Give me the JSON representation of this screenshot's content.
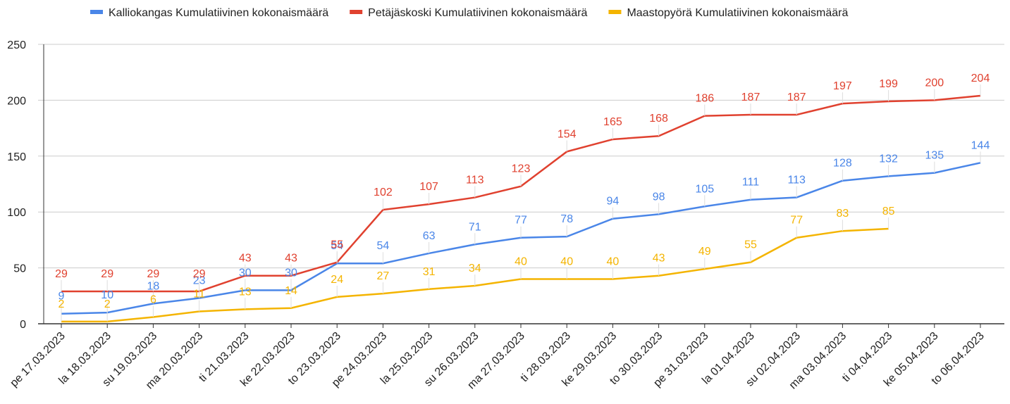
{
  "chart_data": {
    "type": "line",
    "categories": [
      "pe 17.03.2023",
      "la 18.03.2023",
      "su 19.03.2023",
      "ma 20.03.2023",
      "ti 21.03.2023",
      "ke 22.03.2023",
      "to 23.03.2023",
      "pe 24.03.2023",
      "la 25.03.2023",
      "su 26.03.2023",
      "ma 27.03.2023",
      "ti 28.03.2023",
      "ke 29.03.2023",
      "to 30.03.2023",
      "pe 31.03.2023",
      "la 01.04.2023",
      "su 02.04.2023",
      "ma 03.04.2023",
      "ti 04.04.2023",
      "ke 05.04.2023",
      "to 06.04.2023"
    ],
    "series": [
      {
        "name": "Kalliokangas Kumulatiivinen kokonaismäärä",
        "color": "#4a86e8",
        "values": [
          9,
          10,
          18,
          23,
          30,
          30,
          54,
          54,
          63,
          71,
          77,
          78,
          94,
          98,
          105,
          111,
          113,
          128,
          132,
          135,
          144
        ]
      },
      {
        "name": "Petäjäskoski Kumulatiivinen kokonaismäärä",
        "color": "#e0412f",
        "values": [
          29,
          29,
          29,
          29,
          43,
          43,
          55,
          102,
          107,
          113,
          123,
          154,
          165,
          168,
          186,
          187,
          187,
          197,
          199,
          200,
          204
        ]
      },
      {
        "name": "Maastopyörä Kumulatiivinen kokonaismäärä",
        "color": "#f4b400",
        "values": [
          2,
          2,
          6,
          11,
          13,
          14,
          24,
          27,
          31,
          34,
          40,
          40,
          40,
          43,
          49,
          55,
          77,
          83,
          85,
          null,
          null
        ]
      }
    ],
    "ylim": [
      0,
      250
    ],
    "yticks": [
      0,
      50,
      100,
      150,
      200,
      250
    ],
    "grid": true,
    "legend": "top"
  }
}
